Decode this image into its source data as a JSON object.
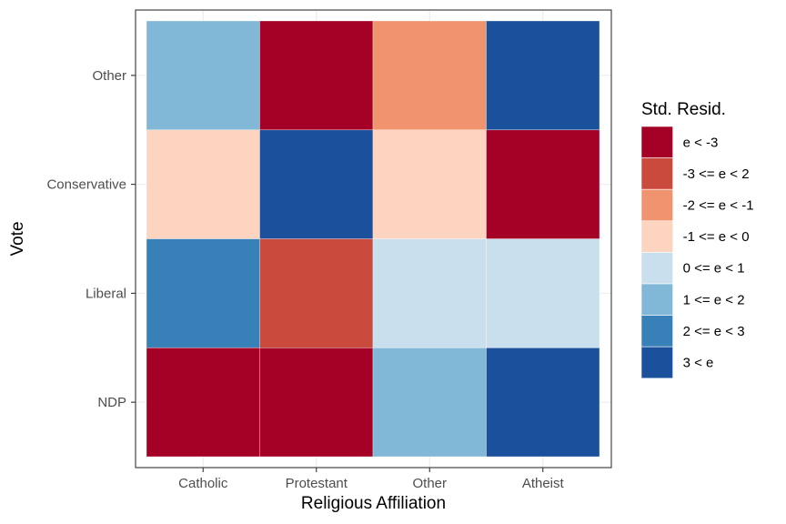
{
  "chart_data": {
    "type": "heatmap",
    "xlabel": "Religious Affiliation",
    "ylabel": "Vote",
    "x_categories": [
      "Catholic",
      "Protestant",
      "Other",
      "Atheist"
    ],
    "y_categories": [
      "NDP",
      "Liberal",
      "Conservative",
      "Other"
    ],
    "legend_title": "Std. Resid.",
    "legend_placement": "right",
    "grid": true,
    "bins": [
      {
        "label": "e < -3",
        "color": "#a50026"
      },
      {
        "label": "-3 <= e < 2",
        "color": "#cb4a3e"
      },
      {
        "label": "-2 <= e < -1",
        "color": "#f09470"
      },
      {
        "label": "-1 <= e < 0",
        "color": "#fcd4bf"
      },
      {
        "label": "0 <= e < 1",
        "color": "#c9dfed"
      },
      {
        "label": "1 <= e < 2",
        "color": "#82b8d7"
      },
      {
        "label": "2 <= e < 3",
        "color": "#3781b8"
      },
      {
        "label": "3 < e",
        "color": "#1b509d"
      }
    ],
    "cells": [
      {
        "x": "Catholic",
        "y": "NDP",
        "bin": 0
      },
      {
        "x": "Protestant",
        "y": "NDP",
        "bin": 0
      },
      {
        "x": "Other",
        "y": "NDP",
        "bin": 5
      },
      {
        "x": "Atheist",
        "y": "NDP",
        "bin": 7
      },
      {
        "x": "Catholic",
        "y": "Liberal",
        "bin": 6
      },
      {
        "x": "Protestant",
        "y": "Liberal",
        "bin": 1
      },
      {
        "x": "Other",
        "y": "Liberal",
        "bin": 4
      },
      {
        "x": "Atheist",
        "y": "Liberal",
        "bin": 4
      },
      {
        "x": "Catholic",
        "y": "Conservative",
        "bin": 3
      },
      {
        "x": "Protestant",
        "y": "Conservative",
        "bin": 7
      },
      {
        "x": "Other",
        "y": "Conservative",
        "bin": 3
      },
      {
        "x": "Atheist",
        "y": "Conservative",
        "bin": 0
      },
      {
        "x": "Catholic",
        "y": "Other",
        "bin": 5
      },
      {
        "x": "Protestant",
        "y": "Other",
        "bin": 0
      },
      {
        "x": "Other",
        "y": "Other",
        "bin": 2
      },
      {
        "x": "Atheist",
        "y": "Other",
        "bin": 7
      }
    ]
  }
}
